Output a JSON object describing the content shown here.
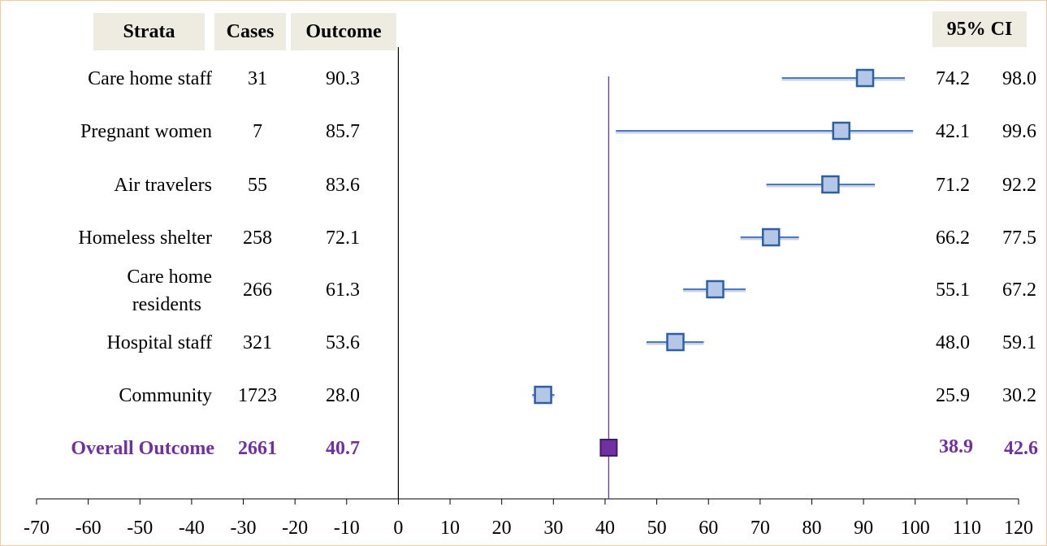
{
  "headers": {
    "strata": "Strata",
    "cases": "Cases",
    "outcome": "Outcome",
    "ci": "95% CI"
  },
  "colors": {
    "marker_fill": "#b4c7e7",
    "marker_stroke": "#2e5fa3",
    "ci_line": "#4a7abf",
    "overall": "#7030a0",
    "reference_line": "#7030a0",
    "header_bg": "#eeece1"
  },
  "chart_data": {
    "type": "forest",
    "xlim": [
      -70,
      120
    ],
    "xticks": [
      -70,
      -60,
      -50,
      -40,
      -30,
      -20,
      -10,
      0,
      10,
      20,
      30,
      40,
      50,
      60,
      70,
      80,
      90,
      100,
      110,
      120
    ],
    "reference_value": 40.7,
    "rows": [
      {
        "label": "Care home staff",
        "cases": "31",
        "outcome": "90.3",
        "lower": "74.2",
        "upper": "98.0",
        "value": 90.3,
        "lo": 74.2,
        "hi": 98.0
      },
      {
        "label": "Pregnant women",
        "cases": "7",
        "outcome": "85.7",
        "lower": "42.1",
        "upper": "99.6",
        "value": 85.7,
        "lo": 42.1,
        "hi": 99.6
      },
      {
        "label": "Air travelers",
        "cases": "55",
        "outcome": "83.6",
        "lower": "71.2",
        "upper": "92.2",
        "value": 83.6,
        "lo": 71.2,
        "hi": 92.2
      },
      {
        "label": "Homeless shelter",
        "cases": "258",
        "outcome": "72.1",
        "lower": "66.2",
        "upper": "77.5",
        "value": 72.1,
        "lo": 66.2,
        "hi": 77.5
      },
      {
        "label": "Care home residents",
        "label_lines": [
          "Care home",
          "residents"
        ],
        "cases": "266",
        "outcome": "61.3",
        "lower": "55.1",
        "upper": "67.2",
        "value": 61.3,
        "lo": 55.1,
        "hi": 67.2
      },
      {
        "label": "Hospital staff",
        "cases": "321",
        "outcome": "53.6",
        "lower": "48.0",
        "upper": "59.1",
        "value": 53.6,
        "lo": 48.0,
        "hi": 59.1
      },
      {
        "label": "Community",
        "cases": "1723",
        "outcome": "28.0",
        "lower": "25.9",
        "upper": "30.2",
        "value": 28.0,
        "lo": 25.9,
        "hi": 30.2
      }
    ],
    "overall": {
      "label": "Overall Outcome",
      "cases": "2661",
      "outcome": "40.7",
      "lower": "38.9",
      "upper": "42.6",
      "value": 40.7,
      "lo": 38.9,
      "hi": 42.6
    }
  }
}
